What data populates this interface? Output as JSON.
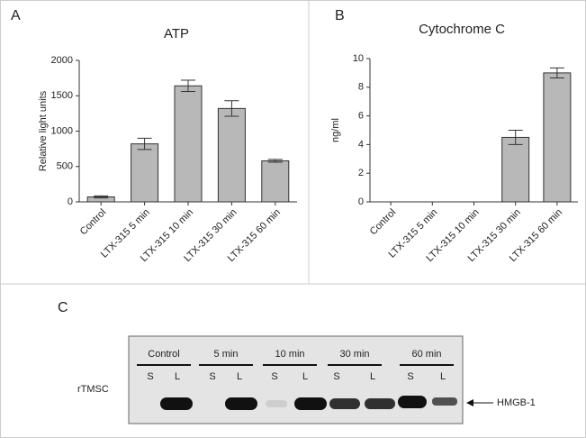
{
  "chart_data": [
    {
      "type": "bar",
      "panel": "A",
      "title": "ATP",
      "ylabel": "Relative light units",
      "categories": [
        "Control",
        "LTX-315 5 min",
        "LTX-315 10 min",
        "LTX-315 30 min",
        "LTX-315 60 min"
      ],
      "values": [
        70,
        820,
        1640,
        1320,
        580
      ],
      "errors": [
        15,
        80,
        80,
        110,
        20
      ],
      "ylim": [
        0,
        2000
      ],
      "yticks": [
        0,
        500,
        1000,
        1500,
        2000
      ],
      "color": "#b8b8b8"
    },
    {
      "type": "bar",
      "panel": "B",
      "title": "Cytochrome C",
      "ylabel": "ng/ml",
      "categories": [
        "Control",
        "LTX-315 5 min",
        "LTX-315 10 min",
        "LTX-315 30 min",
        "LTX-315 60 min"
      ],
      "values": [
        0,
        0,
        0,
        4.5,
        9.0
      ],
      "errors": [
        0,
        0,
        0,
        0.5,
        0.35
      ],
      "ylim": [
        0,
        10
      ],
      "yticks": [
        0,
        2,
        4,
        6,
        8,
        10
      ],
      "color": "#b8b8b8"
    }
  ],
  "blot": {
    "panel": "C",
    "row_label": "rTMSC",
    "band_label": "HMGB-1",
    "groups": [
      {
        "name": "Control",
        "lanes": [
          "S",
          "L"
        ]
      },
      {
        "name": "5 min",
        "lanes": [
          "S",
          "L"
        ]
      },
      {
        "name": "10 min",
        "lanes": [
          "S",
          "L"
        ]
      },
      {
        "name": "30 min",
        "lanes": [
          "S",
          "L"
        ]
      },
      {
        "name": "60 min",
        "lanes": [
          "S",
          "L"
        ]
      }
    ]
  }
}
